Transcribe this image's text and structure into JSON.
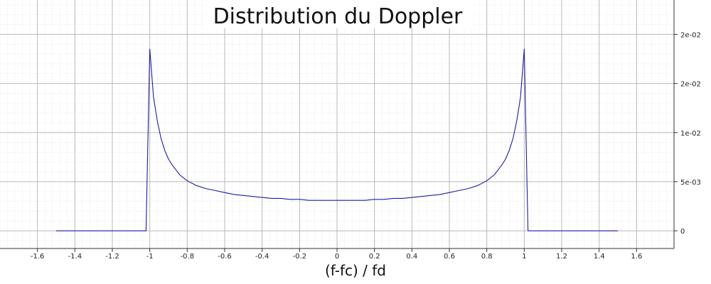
{
  "chart_data": {
    "type": "line",
    "title": "Distribution du Doppler",
    "xlabel": "(f-fc) / fd",
    "ylabel": "",
    "xlim": [
      -1.8,
      1.8
    ],
    "ylim": [
      -0.0018,
      0.0235
    ],
    "x_ticks": [
      -1.6,
      -1.4,
      -1.2,
      -1,
      -0.8,
      -0.6,
      -0.4,
      -0.2,
      0,
      0.2,
      0.4,
      0.6,
      0.8,
      1,
      1.2,
      1.4,
      1.6
    ],
    "x_tick_labels": [
      "-1.6",
      "-1.4",
      "-1.2",
      "-1",
      "-0.8",
      "-0.6",
      "-0.4",
      "-0.2",
      "0",
      "0.2",
      "0.4",
      "0.6",
      "0.8",
      "1",
      "1.2",
      "1.4",
      "1.6"
    ],
    "y_ticks": [
      0,
      0.005,
      0.01,
      0.015,
      0.02
    ],
    "y_tick_labels": [
      "0",
      "5e-03",
      "1e-02",
      "2e-02",
      "2e-02"
    ],
    "grid": true,
    "line_color": "#1c1ca8",
    "series": [
      {
        "x": [
          -1.5,
          -1.02,
          -1.0,
          -0.98,
          -0.96,
          -0.94,
          -0.92,
          -0.9,
          -0.88,
          -0.86,
          -0.84,
          -0.82,
          -0.8,
          -0.75,
          -0.7,
          -0.65,
          -0.6,
          -0.55,
          -0.5,
          -0.45,
          -0.4,
          -0.35,
          -0.3,
          -0.25,
          -0.2,
          -0.15,
          -0.1,
          -0.05,
          0,
          0.05,
          0.1,
          0.15,
          0.2,
          0.25,
          0.3,
          0.35,
          0.4,
          0.45,
          0.5,
          0.55,
          0.6,
          0.65,
          0.7,
          0.75,
          0.8,
          0.82,
          0.84,
          0.86,
          0.88,
          0.9,
          0.92,
          0.94,
          0.96,
          0.98,
          1.0,
          1.02,
          1.5
        ],
        "y": [
          0,
          0,
          0.0185,
          0.0136,
          0.0112,
          0.0094,
          0.0082,
          0.0073,
          0.0067,
          0.0062,
          0.0057,
          0.0054,
          0.0051,
          0.0046,
          0.0043,
          0.0041,
          0.0039,
          0.0037,
          0.0036,
          0.0035,
          0.0034,
          0.0033,
          0.0033,
          0.0032,
          0.0032,
          0.0031,
          0.0031,
          0.0031,
          0.0031,
          0.0031,
          0.0031,
          0.0031,
          0.0032,
          0.0032,
          0.0033,
          0.0033,
          0.0034,
          0.0035,
          0.0036,
          0.0037,
          0.0039,
          0.0041,
          0.0043,
          0.0046,
          0.0051,
          0.0054,
          0.0057,
          0.0062,
          0.0067,
          0.0073,
          0.0082,
          0.0094,
          0.0112,
          0.0136,
          0.0185,
          0,
          0
        ]
      }
    ]
  }
}
